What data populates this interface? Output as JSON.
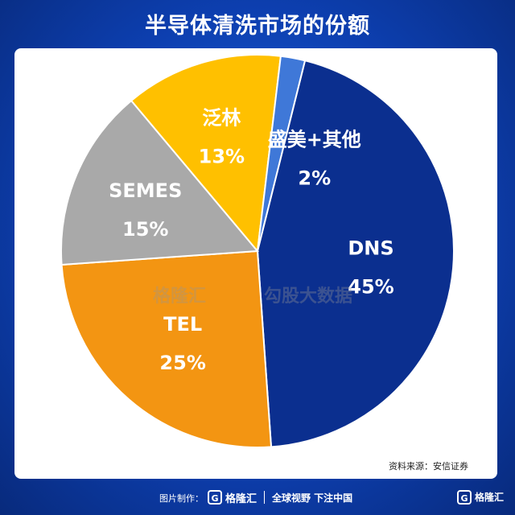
{
  "title": "半导体清洗市场的份额",
  "source": "资料来源：安信证券",
  "chart_data": {
    "type": "pie",
    "title": "半导体清洗市场的份额",
    "slices": [
      {
        "name": "DNS",
        "value": 45,
        "label": "45%",
        "color": "#0b2f8f"
      },
      {
        "name": "TEL",
        "value": 25,
        "label": "25%",
        "color": "#f39512"
      },
      {
        "name": "SEMES",
        "value": 15,
        "label": "15%",
        "color": "#a9a9a9"
      },
      {
        "name": "泛林",
        "value": 13,
        "label": "13%",
        "color": "#ffc000"
      },
      {
        "name": "盛美+其他",
        "value": 2,
        "label": "2%",
        "color": "#3f78d8"
      }
    ]
  },
  "watermark": {
    "left": "格隆汇",
    "right": "勾股大数据"
  },
  "footer": {
    "label": "图片制作：",
    "brand": "格隆汇",
    "slogan": "全球视野 下注中国",
    "corner_brand": "格隆汇"
  }
}
